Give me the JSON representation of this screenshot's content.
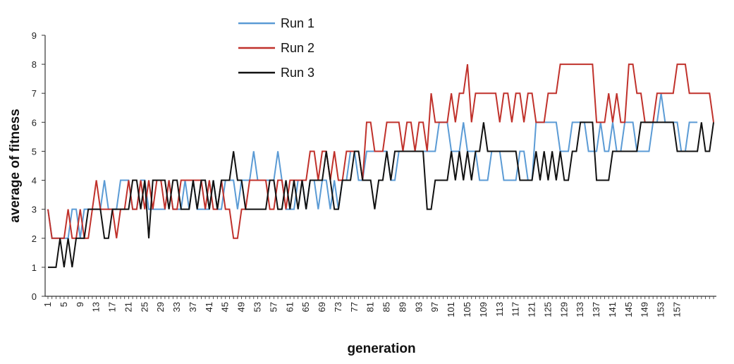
{
  "chart_data": {
    "type": "line",
    "xlabel": "generation",
    "ylabel": "average of fitness",
    "ylim": [
      0,
      9
    ],
    "yticks": [
      0,
      1,
      2,
      3,
      4,
      5,
      6,
      7,
      8,
      9
    ],
    "x_tick_labels": [
      "1",
      "5",
      "9",
      "13",
      "17",
      "21",
      "25",
      "29",
      "33",
      "37",
      "41",
      "45",
      "49",
      "53",
      "57",
      "61",
      "65",
      "69",
      "73",
      "77",
      "81",
      "85",
      "89",
      "93",
      "97",
      "101",
      "105",
      "109",
      "113",
      "117",
      "121",
      "125",
      "129",
      "133",
      "137",
      "141",
      "145",
      "149",
      "153",
      "157"
    ],
    "legend_position": "top-left",
    "series": [
      {
        "name": "Run 1",
        "color": "#5b9bd5",
        "values": [
          3,
          2,
          2,
          2,
          2,
          2,
          3,
          3,
          2,
          3,
          3,
          3,
          3,
          3,
          4,
          3,
          3,
          3,
          4,
          4,
          4,
          3,
          3,
          4,
          4,
          3,
          3,
          3,
          3,
          3,
          4,
          3,
          3,
          3,
          4,
          3,
          4,
          3,
          3,
          3,
          3,
          4,
          3,
          3,
          4,
          4,
          4,
          3,
          4,
          4,
          4,
          5,
          4,
          4,
          4,
          4,
          4,
          5,
          4,
          3,
          3,
          3,
          4,
          4,
          3,
          4,
          4,
          3,
          4,
          4,
          3,
          4,
          3,
          4,
          4,
          5,
          5,
          4,
          4,
          5,
          5,
          5,
          5,
          5,
          5,
          4,
          4,
          5,
          5,
          5,
          5,
          5,
          5,
          5,
          5,
          5,
          5,
          6,
          6,
          6,
          5,
          5,
          5,
          6,
          5,
          5,
          5,
          4,
          4,
          4,
          5,
          5,
          5,
          4,
          4,
          4,
          4,
          5,
          5,
          4,
          4,
          6,
          6,
          6,
          6,
          6,
          6,
          5,
          5,
          5,
          6,
          6,
          6,
          6,
          5,
          5,
          5,
          6,
          5,
          5,
          6,
          5,
          5,
          6,
          6,
          6,
          5,
          5,
          5,
          5,
          6,
          6,
          7,
          6,
          6,
          6,
          6,
          5,
          5,
          6,
          6,
          6
        ]
      },
      {
        "name": "Run 2",
        "color": "#c0312b",
        "values": [
          3,
          2,
          2,
          2,
          2,
          3,
          2,
          2,
          3,
          2,
          2,
          3,
          4,
          3,
          3,
          3,
          3,
          2,
          3,
          3,
          4,
          3,
          3,
          4,
          3,
          4,
          3,
          4,
          4,
          3,
          4,
          3,
          3,
          4,
          4,
          4,
          4,
          4,
          4,
          3,
          4,
          3,
          3,
          4,
          3,
          3,
          2,
          2,
          3,
          3,
          4,
          4,
          4,
          4,
          4,
          3,
          3,
          4,
          4,
          3,
          4,
          4,
          4,
          4,
          4,
          5,
          5,
          4,
          5,
          5,
          4,
          5,
          4,
          4,
          5,
          5,
          5,
          5,
          4,
          6,
          6,
          5,
          5,
          5,
          6,
          6,
          6,
          6,
          5,
          6,
          6,
          5,
          6,
          6,
          5,
          7,
          6,
          6,
          6,
          6,
          7,
          6,
          7,
          7,
          8,
          6,
          7,
          7,
          7,
          7,
          7,
          7,
          6,
          7,
          7,
          6,
          7,
          7,
          6,
          7,
          7,
          6,
          6,
          6,
          7,
          7,
          7,
          8,
          8,
          8,
          8,
          8,
          8,
          8,
          8,
          8,
          6,
          6,
          6,
          7,
          6,
          7,
          6,
          6,
          8,
          8,
          7,
          7,
          6,
          6,
          6,
          7,
          7,
          7,
          7,
          7,
          8,
          8,
          8,
          7,
          7,
          7,
          7,
          7,
          7,
          6
        ]
      },
      {
        "name": "Run 3",
        "color": "#111111",
        "values": [
          1,
          1,
          1,
          2,
          1,
          2,
          1,
          2,
          2,
          2,
          3,
          3,
          3,
          3,
          2,
          2,
          3,
          3,
          3,
          3,
          3,
          4,
          4,
          3,
          4,
          2,
          4,
          4,
          4,
          4,
          3,
          4,
          4,
          3,
          3,
          3,
          4,
          3,
          4,
          4,
          3,
          4,
          3,
          4,
          4,
          4,
          5,
          4,
          4,
          3,
          3,
          3,
          3,
          3,
          3,
          4,
          4,
          3,
          3,
          4,
          3,
          4,
          3,
          4,
          3,
          4,
          4,
          4,
          4,
          5,
          4,
          3,
          3,
          4,
          4,
          4,
          5,
          5,
          4,
          4,
          4,
          3,
          4,
          4,
          5,
          4,
          5,
          5,
          5,
          5,
          5,
          5,
          5,
          5,
          3,
          3,
          4,
          4,
          4,
          4,
          5,
          4,
          5,
          4,
          5,
          4,
          5,
          5,
          6,
          5,
          5,
          5,
          5,
          5,
          5,
          5,
          5,
          4,
          4,
          4,
          4,
          5,
          4,
          5,
          4,
          5,
          4,
          5,
          4,
          4,
          5,
          5,
          6,
          6,
          6,
          6,
          4,
          4,
          4,
          4,
          5,
          5,
          5,
          5,
          5,
          5,
          5,
          6,
          6,
          6,
          6,
          6,
          6,
          6,
          6,
          6,
          5,
          5,
          5,
          5,
          5,
          5,
          6,
          5,
          5,
          6
        ]
      }
    ]
  }
}
